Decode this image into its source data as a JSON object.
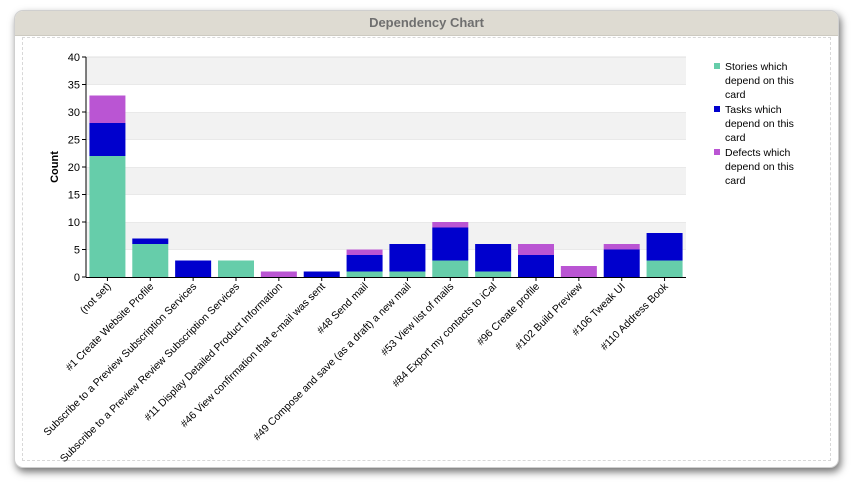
{
  "title": "Dependency Chart",
  "chart_data": {
    "type": "bar",
    "stacked": true,
    "title": "Dependency Chart",
    "ylabel": "Count",
    "xlabel": "",
    "ylim": [
      0,
      40
    ],
    "yticks": [
      0,
      5,
      10,
      15,
      20,
      25,
      30,
      35,
      40
    ],
    "grid": "horizontal bands",
    "legend_position": "right",
    "categories": [
      "(not set)",
      "#1 Create Website Profile",
      "Subscribe to a Preview Subscription Services",
      "Subscribe to a Preview Review Subscription Services",
      "#11 Display Detailed Product Information",
      "#46 View confirmation that e-mail was sent",
      "#48 Send mail",
      "#49 Compose and save (as a draft) a new mail",
      "#53 View list of mails",
      "#84 Export my contacts to iCal",
      "#96 Create profile",
      "#102 Build Preview",
      "#106 Tweak UI",
      "#110 Address Book"
    ],
    "series": [
      {
        "name": "Stories which depend on this card",
        "color": "#66cdaa",
        "values": [
          22,
          6,
          0,
          3,
          0,
          0,
          1,
          1,
          3,
          1,
          0,
          0,
          0,
          3
        ]
      },
      {
        "name": "Tasks which depend on this card",
        "color": "#0000cd",
        "values": [
          6,
          1,
          3,
          0,
          0,
          1,
          3,
          5,
          6,
          5,
          4,
          0,
          5,
          5
        ]
      },
      {
        "name": "Defects which depend on this card",
        "color": "#ba55d3",
        "values": [
          5,
          0,
          0,
          0,
          1,
          0,
          1,
          0,
          1,
          0,
          2,
          2,
          1,
          0
        ]
      }
    ]
  }
}
